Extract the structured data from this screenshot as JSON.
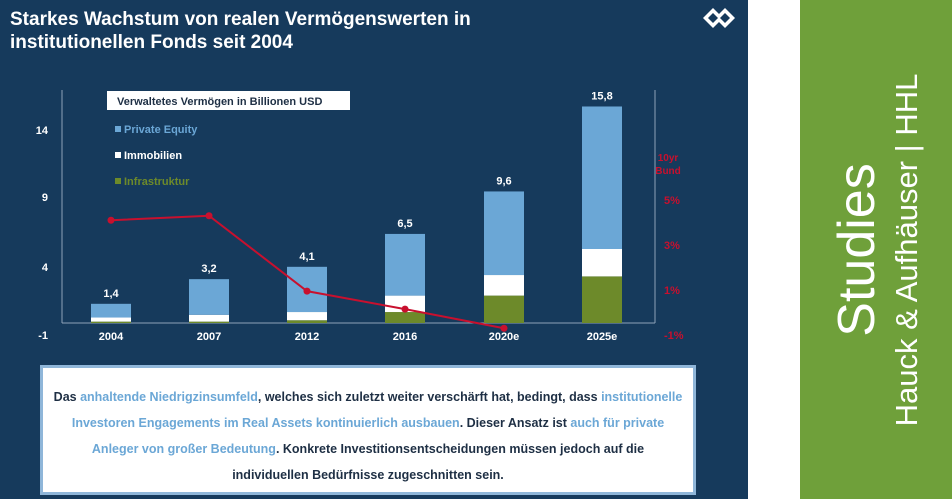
{
  "slide": {
    "title_line1": "Starkes Wachstum von realen Vermögenswerten in",
    "title_line2": "institutionellen Fonds seit 2004"
  },
  "colors": {
    "background": "#163a5c",
    "private_equity": "#6ba7d6",
    "immobilien": "#ffffff",
    "infrastruktur": "#6d8a2a",
    "bund_line": "#c8102e",
    "sidebar": "#6fa03a"
  },
  "chart_data": {
    "type": "bar",
    "stacked": true,
    "legend_title": "Verwaltetes Vermögen in Billionen USD",
    "categories": [
      "2004",
      "2007",
      "2012",
      "2016",
      "2020e",
      "2025e"
    ],
    "totals": [
      1.4,
      3.2,
      4.1,
      6.5,
      9.6,
      15.8
    ],
    "total_labels": [
      "1,4",
      "3,2",
      "4,1",
      "6,5",
      "9,6",
      "15,8"
    ],
    "series": [
      {
        "name": "Private Equity",
        "values": [
          1.0,
          2.6,
          3.3,
          4.5,
          6.1,
          10.4
        ]
      },
      {
        "name": "Immobilien",
        "values": [
          0.3,
          0.5,
          0.6,
          1.2,
          1.5,
          2.0
        ]
      },
      {
        "name": "Infrastruktur",
        "values": [
          0.1,
          0.1,
          0.2,
          0.8,
          2.0,
          3.4
        ]
      }
    ],
    "yticks": [
      "14",
      "9",
      "4",
      "-1"
    ],
    "ylim": [
      -1,
      17
    ],
    "secondary": {
      "name": "10yr Bund",
      "label_line1": "10yr",
      "label_line2": "Bund",
      "type": "line",
      "categories": [
        "2004",
        "2007",
        "2012",
        "2016",
        "2020e"
      ],
      "values": [
        4.1,
        4.3,
        0.95,
        0.15,
        -0.7
      ],
      "yticks": [
        "5%",
        "3%",
        "1%",
        "-1%"
      ],
      "ylim": [
        -1,
        5
      ]
    }
  },
  "info": {
    "p1": "Das ",
    "h1": "anhaltende Niedrigzinsumfeld",
    "p2": ", welches sich zuletzt weiter verschärft hat, bedingt, dass ",
    "h2": "institutionelle Investoren Engagements im Real Assets kontinuierlich ausbauen",
    "p3": ". Dieser Ansatz ist ",
    "h3": "auch für private Anleger von großer Bedeutung",
    "p4": ". Konkrete Investitionsentscheidungen müssen jedoch auf die individuellen Bedürfnisse zugeschnitten sein."
  },
  "sidebar": {
    "line1": "Studies",
    "line2": "Hauck & Aufhäuser | HHL"
  }
}
